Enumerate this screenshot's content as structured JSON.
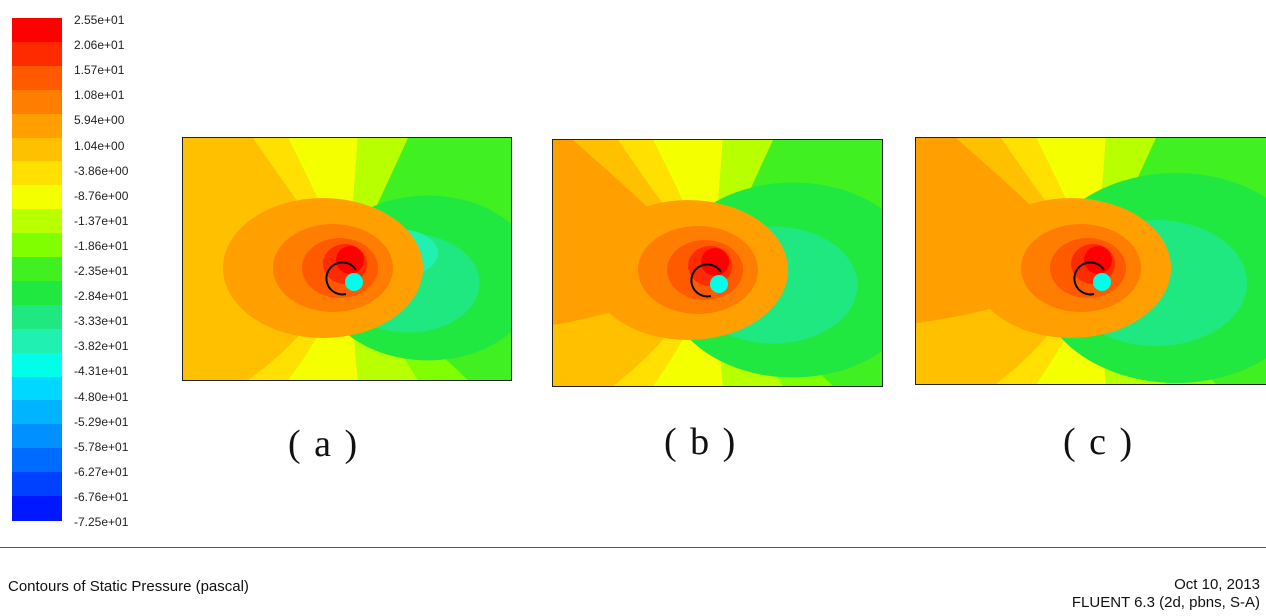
{
  "chart_data": {
    "type": "heatmap",
    "title": "Contours of Static Pressure (pascal)",
    "colorbar": {
      "ticks": [
        "2.55e+01",
        "2.06e+01",
        "1.57e+01",
        "1.08e+01",
        "5.94e+00",
        "1.04e+00",
        "-3.86e+00",
        "-8.76e+00",
        "-1.37e+01",
        "-1.86e+01",
        "-2.35e+01",
        "-2.84e+01",
        "-3.33e+01",
        "-3.82e+01",
        "-4.31e+01",
        "-4.80e+01",
        "-5.29e+01",
        "-5.78e+01",
        "-6.27e+01",
        "-6.76e+01",
        "-7.25e+01"
      ],
      "range": [
        -72.5,
        25.5
      ],
      "colors": [
        "#ff0000",
        "#ff2a00",
        "#ff5a00",
        "#ff7d00",
        "#ffa000",
        "#ffc000",
        "#ffe000",
        "#f4ff00",
        "#b8ff00",
        "#80ff00",
        "#40f020",
        "#20e840",
        "#20e880",
        "#20f0b0",
        "#00ffe8",
        "#00d8ff",
        "#00b4ff",
        "#0090ff",
        "#006cff",
        "#0040ff",
        "#0018ff"
      ],
      "orientation": "vertical, high values at top"
    },
    "panels": [
      {
        "label": "( a )"
      },
      {
        "label": "( b )"
      },
      {
        "label": "( c )"
      }
    ]
  },
  "footer": {
    "caption": "Contours of Static Pressure (pascal)",
    "date": "Oct 10, 2013",
    "solver": "FLUENT 6.3 (2d, pbns, S-A)"
  }
}
